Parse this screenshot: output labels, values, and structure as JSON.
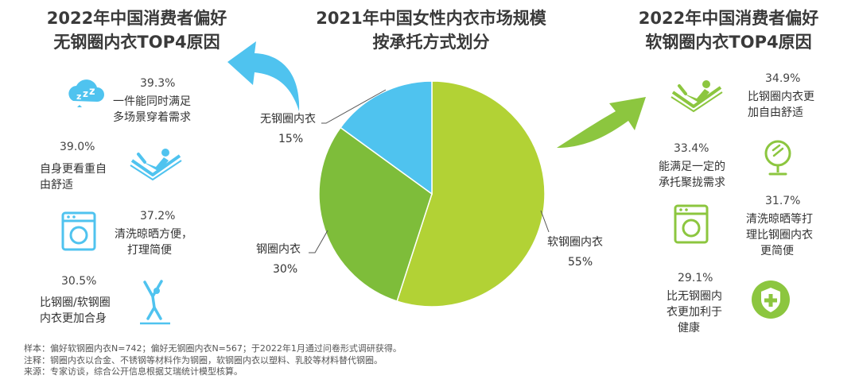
{
  "left_panel": {
    "title_line1": "2022年中国消费者偏好",
    "title_line2": "无钢圈内衣TOP4原因",
    "reasons": [
      {
        "pct": "39.3%",
        "line1": "一件能同时满足",
        "line2": "多场景穿着需求",
        "icon": "sleep-zzz-icon"
      },
      {
        "pct": "39.0%",
        "line1": "自身更看重自",
        "line2": "由舒适",
        "icon": "reclining-person-icon"
      },
      {
        "pct": "37.2%",
        "line1": "清洗晾晒方便，",
        "line2": "打理简便",
        "icon": "washing-machine-icon"
      },
      {
        "pct": "30.5%",
        "line1": "比钢圈/软钢圈",
        "line2": "内衣更加合身",
        "icon": "stretching-person-icon"
      }
    ]
  },
  "center": {
    "title_line1": "2021年中国女性内衣市场规模",
    "title_line2": "按承托方式划分"
  },
  "right_panel": {
    "title_line1": "2022年中国消费者偏好",
    "title_line2": "软钢圈内衣TOP4原因",
    "reasons": [
      {
        "pct": "34.9%",
        "line1": "比钢圈内衣更",
        "line2": "加自由舒适",
        "line3": "",
        "icon": "reclining-person-icon"
      },
      {
        "pct": "33.4%",
        "line1": "能满足一定的",
        "line2": "承托聚拢需求",
        "line3": "",
        "icon": "mirror-icon"
      },
      {
        "pct": "31.7%",
        "line1": "清洗晾晒等打",
        "line2": "理比钢圈内衣",
        "line3": "更简便",
        "icon": "washing-machine-icon"
      },
      {
        "pct": "29.1%",
        "line1": "比无钢圈内",
        "line2": "衣更加利于",
        "line3": "健康",
        "icon": "health-shield-icon"
      }
    ]
  },
  "chart_data": {
    "type": "pie",
    "title": "2021年中国女性内衣市场规模按承托方式划分",
    "slices": [
      {
        "label": "软钢圈内衣",
        "value": 55,
        "display": "55%",
        "color": "#b2d235"
      },
      {
        "label": "钢圈内衣",
        "value": 30,
        "display": "30%",
        "color": "#7ebd3a"
      },
      {
        "label": "无钢圈内衣",
        "value": 15,
        "display": "15%",
        "color": "#4fc3ef"
      }
    ]
  },
  "footer": {
    "line1": "样本：偏好软钢圈内衣N=742；偏好无钢圈内衣N=567；于2022年1月通过问卷形式调研获得。",
    "line2": "注释：钢圈内衣以合金、不锈钢等材料作为钢圈，软钢圈内衣以塑料、乳胶等材料替代钢圈。",
    "line3": "来源：专家访谈，综合公开信息根据艾瑞统计模型核算。"
  },
  "colors": {
    "blue": "#4fc3ef",
    "green_light": "#b2d235",
    "green_mid": "#7ebd3a",
    "title_text": "#3a3a3a"
  }
}
